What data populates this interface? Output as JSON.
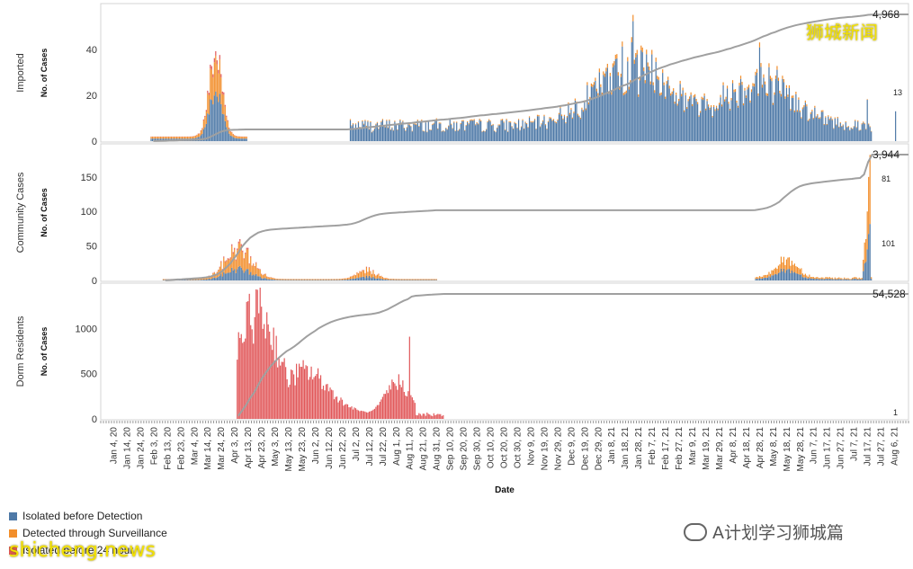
{
  "chart_data": {
    "type": "bar",
    "xlabel": "Date",
    "x_ticks": [
      "Jan 4, 20",
      "Jan 14, 20",
      "Jan 24, 20",
      "Feb 3, 20",
      "Feb 13, 20",
      "Feb 23, 20",
      "Mar 4, 20",
      "Mar 14, 20",
      "Mar 24, 20",
      "Apr 3, 20",
      "Apr 13, 20",
      "Apr 23, 20",
      "May 3, 20",
      "May 13, 20",
      "May 23, 20",
      "Jun 2, 20",
      "Jun 12, 20",
      "Jun 22, 20",
      "Jul 2, 20",
      "Jul 12, 20",
      "Jul 22, 20",
      "Aug 1, 20",
      "Aug 11, 20",
      "Aug 21, 20",
      "Aug 31, 20",
      "Sep 10, 20",
      "Sep 20, 20",
      "Sep 30, 20",
      "Oct 10, 20",
      "Oct 20, 20",
      "Oct 30, 20",
      "Nov 9, 20",
      "Nov 19, 20",
      "Nov 29, 20",
      "Dec 9, 20",
      "Dec 19, 20",
      "Dec 29, 20",
      "Jan 8, 21",
      "Jan 18, 21",
      "Jan 28, 21",
      "Feb 7, 21",
      "Feb 17, 21",
      "Feb 27, 21",
      "Mar 9, 21",
      "Mar 19, 21",
      "Mar 29, 21",
      "Apr 8, 21",
      "Apr 18, 21",
      "Apr 28, 21",
      "May 8, 21",
      "May 18, 21",
      "May 28, 21",
      "Jun 7, 21",
      "Jun 17, 21",
      "Jun 27, 21",
      "Jul 7, 21",
      "Jul 17, 21",
      "Jul 27, 21",
      "Aug 6, 21"
    ],
    "legend": [
      {
        "label": "Isolated before Detection",
        "color": "#4e79a7"
      },
      {
        "label": "Detected through Surveillance",
        "color": "#f28e2b"
      },
      {
        "label": "Isolated before 24 hour",
        "color": "#e15759"
      }
    ],
    "panels": [
      {
        "name": "Imported",
        "ylabel": "No. of Cases",
        "yticks": [
          0,
          20,
          40
        ],
        "ymax": 56,
        "total_label": "4,968",
        "last_label": "13",
        "last_value": 13,
        "peaks": [
          {
            "x": "Mar 20, 20",
            "value": 48
          },
          {
            "x": "Jan 24, 21",
            "value": 55
          },
          {
            "x": "Apr 28, 21",
            "value": 43
          },
          {
            "x": "Jul 17, 21",
            "value": 18
          }
        ]
      },
      {
        "name": "Community Cases",
        "ylabel": "No. of Cases",
        "yticks": [
          0,
          50,
          100,
          150
        ],
        "ymax": 185,
        "total_label": "3,944",
        "point_labels": [
          "81",
          "101"
        ],
        "last_value": 182,
        "peaks": [
          {
            "x": "Apr 6, 20",
            "value": 62
          },
          {
            "x": "May 18, 21",
            "value": 35
          },
          {
            "x": "Jul 20, 21",
            "value": 182
          }
        ]
      },
      {
        "name": "Dorm Residents",
        "ylabel": "No. of Cases",
        "yticks": [
          0,
          500,
          1000
        ],
        "ymax": 1400,
        "total_label": "54,528",
        "last_label": "1",
        "last_value": 1,
        "peaks": [
          {
            "x": "Apr 20, 20",
            "value": 1426
          },
          {
            "x": "Aug 11, 20",
            "value": 908
          }
        ]
      }
    ]
  },
  "watermarks": {
    "top": "狮城新闻",
    "bottom": "shicheng.news",
    "wechat": "A计划学习狮城篇"
  }
}
